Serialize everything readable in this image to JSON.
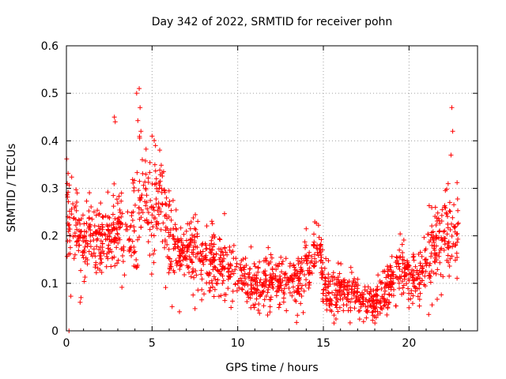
{
  "chart_data": {
    "type": "scatter",
    "title": "Day 342 of 2022, SRMTID for receiver pohn",
    "xlabel": "GPS time / hours",
    "ylabel": "SRMTID / TECUs",
    "xlim": [
      0,
      24
    ],
    "ylim": [
      0,
      0.6
    ],
    "xticks": [
      0,
      5,
      10,
      15,
      20
    ],
    "yticks": [
      0,
      0.1,
      0.2,
      0.3,
      0.4,
      0.5,
      0.6
    ],
    "xtick_labels": [
      "0",
      "5",
      "10",
      "15",
      "20"
    ],
    "ytick_labels": [
      "0",
      "0.1",
      "0.2",
      "0.3",
      "0.4",
      "0.5",
      "0.6"
    ],
    "grid": true,
    "marker": "+",
    "color": "#ff0000",
    "series": [
      {
        "name": "SRMTID",
        "profile": {
          "hours": [
            0.0,
            0.5,
            1.0,
            1.5,
            2.0,
            2.5,
            3.0,
            3.5,
            4.0,
            4.5,
            5.0,
            5.5,
            6.0,
            6.5,
            7.0,
            7.5,
            8.0,
            9.0,
            10.0,
            11.0,
            12.0,
            13.0,
            14.0,
            14.8,
            15.0,
            15.5,
            16.0,
            16.5,
            17.0,
            17.5,
            18.0,
            18.5,
            19.0,
            19.5,
            20.0,
            20.5,
            21.0,
            21.5,
            22.0,
            22.5,
            22.9
          ],
          "median": [
            0.24,
            0.22,
            0.18,
            0.21,
            0.19,
            0.18,
            0.22,
            0.2,
            0.22,
            0.29,
            0.25,
            0.28,
            0.2,
            0.16,
            0.17,
            0.16,
            0.15,
            0.14,
            0.11,
            0.1,
            0.11,
            0.1,
            0.12,
            0.2,
            0.09,
            0.08,
            0.09,
            0.08,
            0.07,
            0.06,
            0.06,
            0.08,
            0.1,
            0.13,
            0.12,
            0.11,
            0.14,
            0.17,
            0.21,
            0.22,
            0.2
          ],
          "spread": [
            0.05,
            0.05,
            0.04,
            0.04,
            0.04,
            0.04,
            0.06,
            0.05,
            0.07,
            0.07,
            0.06,
            0.06,
            0.05,
            0.04,
            0.04,
            0.04,
            0.04,
            0.04,
            0.03,
            0.03,
            0.03,
            0.03,
            0.03,
            0.03,
            0.03,
            0.03,
            0.03,
            0.03,
            0.02,
            0.02,
            0.02,
            0.03,
            0.03,
            0.03,
            0.03,
            0.03,
            0.04,
            0.05,
            0.05,
            0.05,
            0.05
          ]
        },
        "outliers": [
          {
            "x": 0.05,
            "y": 0.31
          },
          {
            "x": 0.15,
            "y": 0.0
          },
          {
            "x": 0.8,
            "y": 0.06
          },
          {
            "x": 0.85,
            "y": 0.07
          },
          {
            "x": 2.8,
            "y": 0.45
          },
          {
            "x": 2.85,
            "y": 0.44
          },
          {
            "x": 4.1,
            "y": 0.5
          },
          {
            "x": 4.25,
            "y": 0.51
          },
          {
            "x": 4.3,
            "y": 0.47
          },
          {
            "x": 4.35,
            "y": 0.42
          },
          {
            "x": 5.0,
            "y": 0.41
          },
          {
            "x": 5.2,
            "y": 0.39
          },
          {
            "x": 6.6,
            "y": 0.04
          },
          {
            "x": 22.5,
            "y": 0.47
          },
          {
            "x": 22.55,
            "y": 0.42
          },
          {
            "x": 22.45,
            "y": 0.37
          }
        ]
      }
    ]
  }
}
